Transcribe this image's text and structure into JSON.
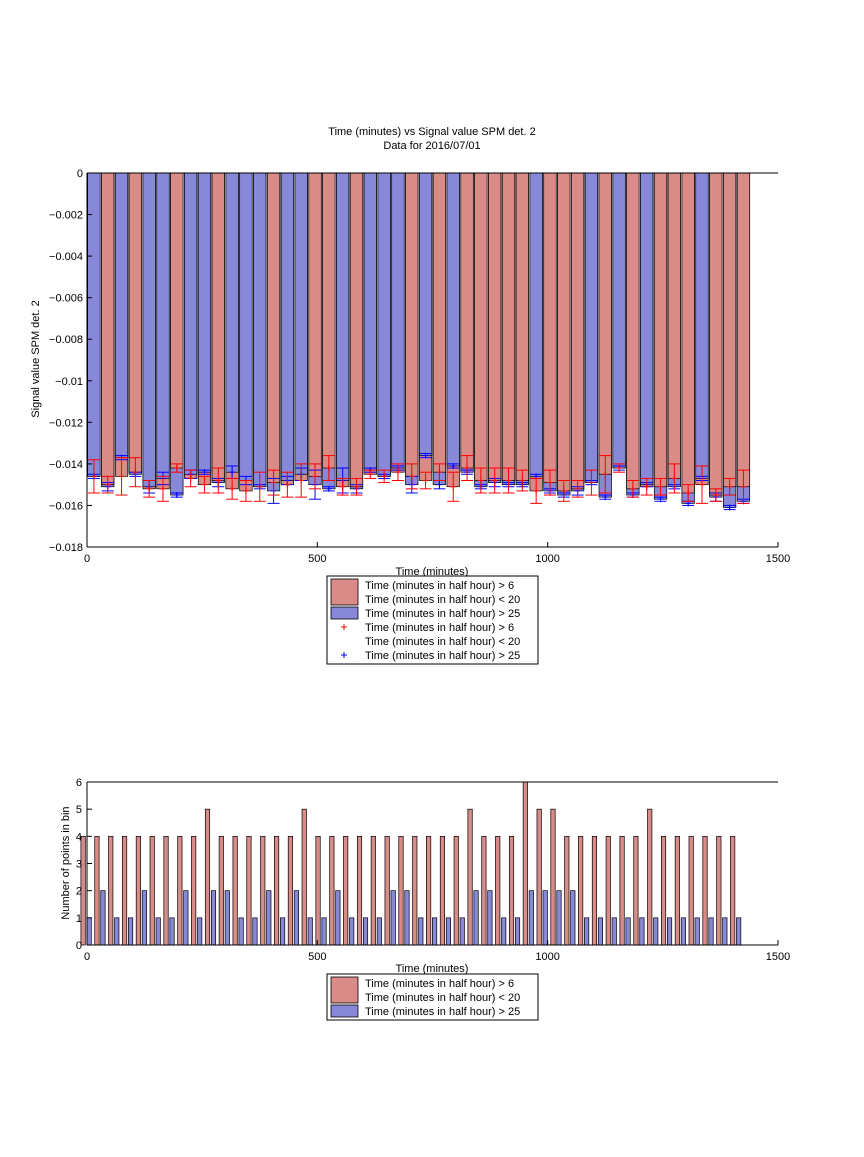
{
  "chart_data": [
    {
      "type": "bar",
      "title": "Time (minutes) vs Signal value SPM det. 2",
      "subtitle": "Data for 2016/07/01",
      "xlabel": "Time (minutes)",
      "ylabel": "Signal value SPM det. 2",
      "xlim": [
        0,
        1500
      ],
      "ylim": [
        -0.018,
        0
      ],
      "xticks": [
        "0",
        "500",
        "1000",
        "1500"
      ],
      "yticks": [
        "0",
        "−0.002",
        "−0.004",
        "−0.006",
        "−0.008",
        "−0.01",
        "−0.012",
        "−0.014",
        "−0.016",
        "−0.018"
      ],
      "grid": false,
      "legend_position": "bottom",
      "colors": {
        "red_bar": "#d98c87",
        "blue_bar": "#8888d9",
        "red_err": "#ff0000",
        "blue_err": "#0000ff"
      },
      "x": [
        15,
        45,
        75,
        105,
        135,
        165,
        195,
        225,
        255,
        285,
        315,
        345,
        375,
        405,
        435,
        465,
        495,
        525,
        555,
        585,
        615,
        645,
        675,
        705,
        735,
        765,
        795,
        825,
        855,
        885,
        915,
        945,
        975,
        1005,
        1035,
        1065,
        1095,
        1125,
        1155,
        1185,
        1215,
        1245,
        1275,
        1305,
        1335,
        1365,
        1395,
        1425
      ],
      "series": [
        {
          "name": "Time (minutes in half hour) > 6\nTime (minutes in half hour) < 20",
          "values": [
            -0.0146,
            -0.015,
            -0.0146,
            -0.0144,
            -0.0152,
            -0.0152,
            -0.0142,
            -0.0147,
            -0.015,
            -0.0148,
            -0.0152,
            -0.0153,
            -0.0151,
            -0.0149,
            -0.015,
            -0.0148,
            -0.0146,
            -0.0142,
            -0.0151,
            -0.0151,
            -0.0145,
            -0.0146,
            -0.0144,
            -0.0146,
            -0.0148,
            -0.0144,
            -0.0151,
            -0.0142,
            -0.0148,
            -0.0148,
            -0.0148,
            -0.0148,
            -0.0153,
            -0.0149,
            -0.0153,
            -0.0152,
            -0.0149,
            -0.0145,
            -0.0142,
            -0.0152,
            -0.0151,
            -0.0151,
            -0.0147,
            -0.0154,
            -0.015,
            -0.0155,
            -0.0151,
            -0.0151
          ],
          "error": [
            0.0008,
            0.0004,
            0.0009,
            0.0007,
            0.0004,
            0.0006,
            0.0002,
            0.0004,
            0.0004,
            0.0006,
            0.0005,
            0.0005,
            0.0007,
            0.0006,
            0.0006,
            0.0008,
            0.0006,
            0.0006,
            0.0004,
            0.0004,
            0.0002,
            0.0003,
            0.0004,
            0.0006,
            0.0004,
            0.0004,
            0.0007,
            0.0006,
            0.0006,
            0.0006,
            0.0006,
            0.0005,
            0.0006,
            0.0006,
            0.0005,
            0.0004,
            0.0006,
            0.0009,
            0.0002,
            0.0004,
            0.0004,
            0.0004,
            0.0007,
            0.0004,
            0.0009,
            0.0003,
            0.0004,
            0.0008
          ]
        },
        {
          "name": "Time (minutes in half hour) > 25",
          "values": [
            -0.0146,
            -0.0151,
            -0.0137,
            -0.0145,
            -0.0151,
            -0.0147,
            -0.0155,
            -0.0145,
            -0.0144,
            -0.0149,
            -0.0144,
            -0.0148,
            -0.0151,
            -0.0153,
            -0.0148,
            -0.0145,
            -0.015,
            -0.0152,
            -0.0148,
            -0.0152,
            -0.0143,
            -0.0146,
            -0.0142,
            -0.015,
            -0.0136,
            -0.015,
            -0.0141,
            -0.0144,
            -0.0151,
            -0.0149,
            -0.015,
            -0.015,
            -0.0146,
            -0.0153,
            -0.0155,
            -0.0153,
            -0.0149,
            -0.0156,
            -0.0142,
            -0.0155,
            -0.015,
            -0.0157,
            -0.0151,
            -0.0159,
            -0.0147,
            -0.0156,
            -0.0161,
            -0.0158
          ],
          "error": [
            0.0001,
            0.0002,
            0.0001,
            0.0001,
            0.0003,
            0.0003,
            0.0001,
            0.0002,
            0.0001,
            0.0002,
            0.0003,
            0.0002,
            0.0001,
            0.0006,
            0.0002,
            0.0003,
            0.0007,
            0.0001,
            0.0006,
            0.0002,
            0.0001,
            0.0001,
            0.0001,
            0.0004,
            0.0001,
            0.0002,
            0.0001,
            0.0001,
            0.0001,
            0.0002,
            0.0001,
            0.0001,
            0.0001,
            0.0001,
            0.0001,
            0.0002,
            0.0001,
            0.0001,
            0.0001,
            0.0001,
            0.0001,
            0.0001,
            0.0001,
            0.0001,
            0.0001,
            0.0002,
            0.0001,
            0.0001
          ]
        }
      ],
      "legend": [
        {
          "kind": "bar",
          "color": "#d98c87",
          "lines": [
            "Time (minutes in half hour) > 6",
            "Time (minutes in half hour) < 20"
          ]
        },
        {
          "kind": "bar",
          "color": "#8888d9",
          "lines": [
            "Time (minutes in half hour) > 25"
          ]
        },
        {
          "kind": "marker",
          "color": "#ff0000",
          "lines": [
            "Time (minutes in half hour) > 6",
            "Time (minutes in half hour) < 20"
          ]
        },
        {
          "kind": "marker",
          "color": "#0000ff",
          "lines": [
            "Time (minutes in half hour) > 25"
          ]
        }
      ]
    },
    {
      "type": "bar",
      "xlabel": "Time (minutes)",
      "ylabel": "Number of points in bin",
      "xlim": [
        0,
        1500
      ],
      "ylim": [
        0,
        6
      ],
      "xticks": [
        "0",
        "500",
        "1000",
        "1500"
      ],
      "yticks": [
        "0",
        "1",
        "2",
        "3",
        "4",
        "5",
        "6"
      ],
      "grid": false,
      "legend_position": "bottom",
      "x": [
        15,
        45,
        75,
        105,
        135,
        165,
        195,
        225,
        255,
        285,
        315,
        345,
        375,
        405,
        435,
        465,
        495,
        525,
        555,
        585,
        615,
        645,
        675,
        705,
        735,
        765,
        795,
        825,
        855,
        885,
        915,
        945,
        975,
        1005,
        1035,
        1065,
        1095,
        1125,
        1155,
        1185,
        1215,
        1245,
        1275,
        1305,
        1335,
        1365,
        1395,
        1425
      ],
      "series": [
        {
          "name": "Time (minutes in half hour) > 6\nTime (minutes in half hour) < 20",
          "values": [
            4,
            4,
            4,
            4,
            4,
            4,
            4,
            4,
            4,
            5,
            4,
            4,
            4,
            4,
            4,
            4,
            5,
            4,
            4,
            4,
            4,
            4,
            4,
            4,
            4,
            4,
            4,
            4,
            5,
            4,
            4,
            4,
            6,
            5,
            5,
            4,
            4,
            4,
            4,
            4,
            4,
            5,
            4,
            4,
            4,
            4,
            4,
            4
          ]
        },
        {
          "name": "Time (minutes in half hour) > 25",
          "values": [
            1,
            2,
            1,
            1,
            2,
            1,
            1,
            2,
            1,
            2,
            2,
            1,
            1,
            2,
            1,
            2,
            1,
            1,
            2,
            1,
            1,
            1,
            2,
            2,
            1,
            1,
            1,
            1,
            2,
            2,
            1,
            1,
            2,
            2,
            2,
            2,
            1,
            1,
            1,
            1,
            1,
            1,
            1,
            1,
            1,
            1,
            1,
            1
          ]
        }
      ],
      "legend": [
        {
          "kind": "bar",
          "color": "#d98c87",
          "lines": [
            "Time (minutes in half hour) > 6",
            "Time (minutes in half hour) < 20"
          ]
        },
        {
          "kind": "bar",
          "color": "#8888d9",
          "lines": [
            "Time (minutes in half hour) > 25"
          ]
        }
      ]
    }
  ]
}
